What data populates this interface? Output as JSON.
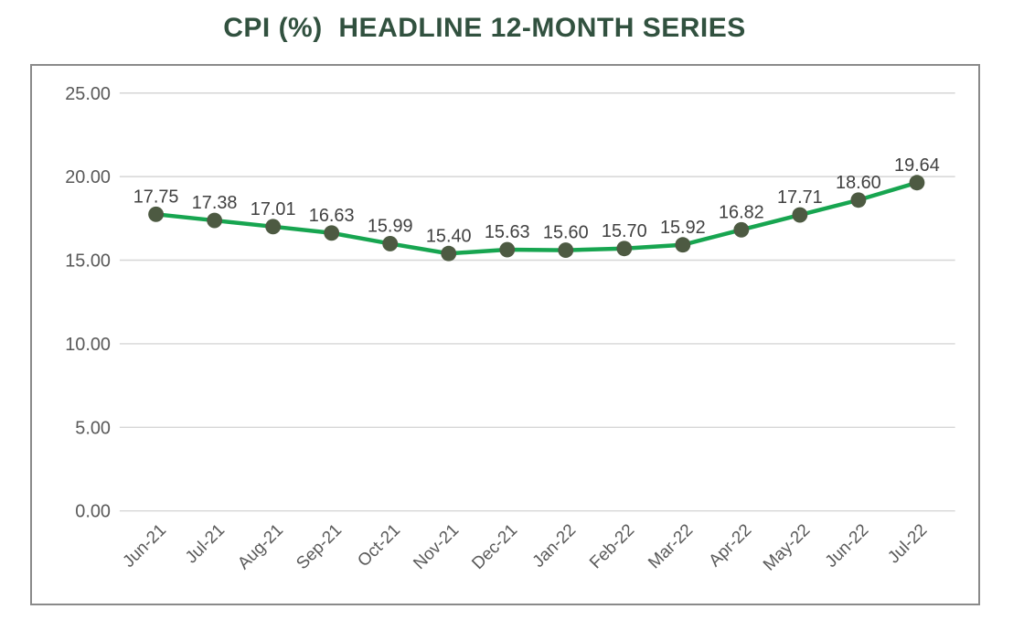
{
  "title": "CPI (%)  HEADLINE 12-MONTH SERIES",
  "chart_data": {
    "type": "line",
    "title": "CPI (%)  HEADLINE 12-MONTH SERIES",
    "categories": [
      "Jun-21",
      "Jul-21",
      "Aug-21",
      "Sep-21",
      "Oct-21",
      "Nov-21",
      "Dec-21",
      "Jan-22",
      "Feb-22",
      "Mar-22",
      "Apr-22",
      "May-22",
      "Jun-22",
      "Jul-22"
    ],
    "values": [
      17.75,
      17.38,
      17.01,
      16.63,
      15.99,
      15.4,
      15.63,
      15.6,
      15.7,
      15.92,
      16.82,
      17.71,
      18.6,
      19.64
    ],
    "data_labels": [
      "17.75",
      "17.38",
      "17.01",
      "16.63",
      "15.99",
      "15.40",
      "15.63",
      "15.60",
      "15.70",
      "15.92",
      "16.82",
      "17.71",
      "18.60",
      "19.64"
    ],
    "y_ticks": [
      "25.00",
      "20.00",
      "15.00",
      "10.00",
      "5.00",
      "0.00"
    ],
    "ylim": [
      0,
      25
    ],
    "xlabel": "",
    "ylabel": "",
    "grid": true,
    "legend": "none",
    "series_name": "CPI (%) Headline 12-Month"
  },
  "colors": {
    "title_text": "#31513f",
    "line": "#17a550",
    "marker": "#4d5a42",
    "grid": "#d6d6d6",
    "axis_text": "#595959",
    "data_label_text": "#404040",
    "frame_border": "#8a8a8a"
  }
}
